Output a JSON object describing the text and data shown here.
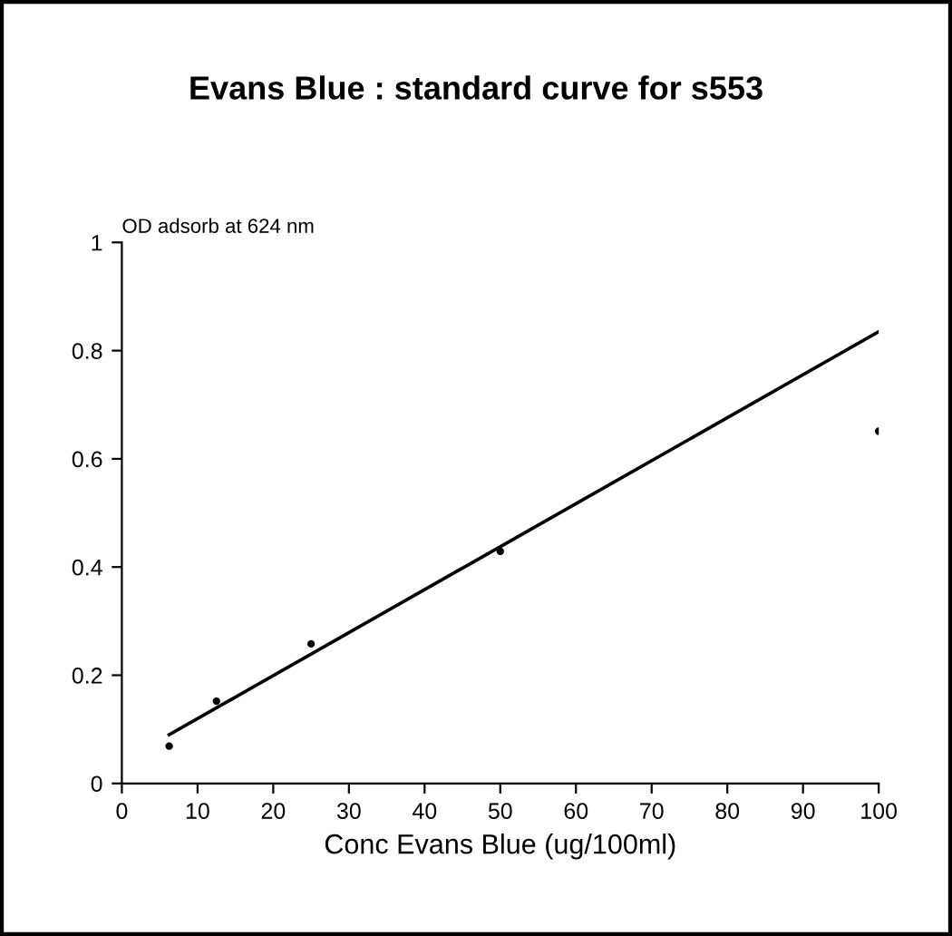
{
  "chart_data": {
    "type": "scatter",
    "title": "Evans Blue : standard curve for s553",
    "xlabel": "Conc Evans Blue (ug/100ml)",
    "ylabel": "OD adsorb at 624 nm",
    "series": [
      {
        "color": "#000000",
        "x": [
          6.25,
          12.5,
          25,
          50,
          100
        ],
        "values": [
          0.069,
          0.152,
          0.258,
          0.429,
          0.651
        ]
      },
      {
        "type": "line",
        "color": "#000000",
        "x": [
          6.25,
          100
        ],
        "values": [
          0.09,
          0.835
        ]
      }
    ],
    "xlim": [
      0,
      100
    ],
    "ylim": [
      0,
      1
    ],
    "xticks": [
      0,
      10,
      20,
      30,
      40,
      50,
      60,
      70,
      80,
      90,
      100
    ],
    "yticks": [
      0,
      0.2,
      0.4,
      0.6,
      0.8,
      1
    ],
    "grid": false,
    "legend": false
  }
}
